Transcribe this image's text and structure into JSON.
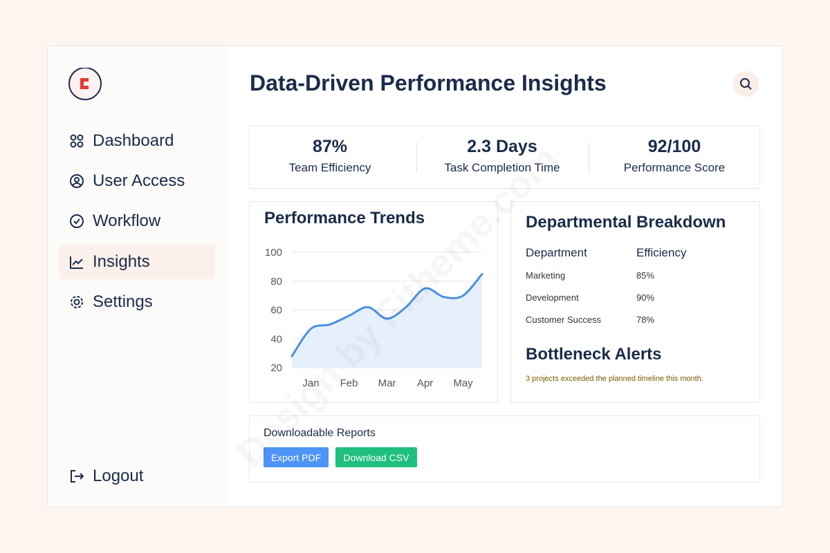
{
  "sidebar": {
    "nav": [
      "Dashboard",
      "User Access",
      "Workflow",
      "Insights",
      "Settings"
    ],
    "logout": "Logout"
  },
  "header": {
    "title": "Data-Driven Performance Insights"
  },
  "stats": [
    {
      "value": "87%",
      "label": "Team Efficiency"
    },
    {
      "value": "2.3 Days",
      "label": "Task Completion Time"
    },
    {
      "value": "92/100",
      "label": "Performance Score"
    }
  ],
  "chart_data": {
    "type": "line",
    "title": "Performance Trends",
    "categories": [
      null,
      "Jan",
      null,
      "Feb",
      null,
      "Mar",
      null,
      "Apr",
      null,
      "May",
      null
    ],
    "values": [
      28,
      47,
      50,
      56,
      62,
      54,
      62,
      75,
      69,
      70,
      85
    ],
    "ylim": [
      20,
      100
    ],
    "yticks": [
      20,
      40,
      60,
      80,
      100
    ],
    "color": "#4a90e2",
    "area_color": "#e6f0fc",
    "grid": true,
    "smooth": true
  },
  "breakdown": {
    "title": "Departmental Breakdown",
    "headers": [
      "Department",
      "Efficiency"
    ],
    "rows": [
      [
        "Marketing",
        "85%"
      ],
      [
        "Development",
        "90%"
      ],
      [
        "Customer Success",
        "78%"
      ]
    ]
  },
  "alerts": {
    "title": "Bottleneck Alerts",
    "text": "3 projects exceeded the planned timeline this month."
  },
  "reports": {
    "title": "Downloadable Reports",
    "buttons": [
      "Export PDF",
      "Download CSV"
    ]
  },
  "watermark": "Design by Fitheme.com"
}
